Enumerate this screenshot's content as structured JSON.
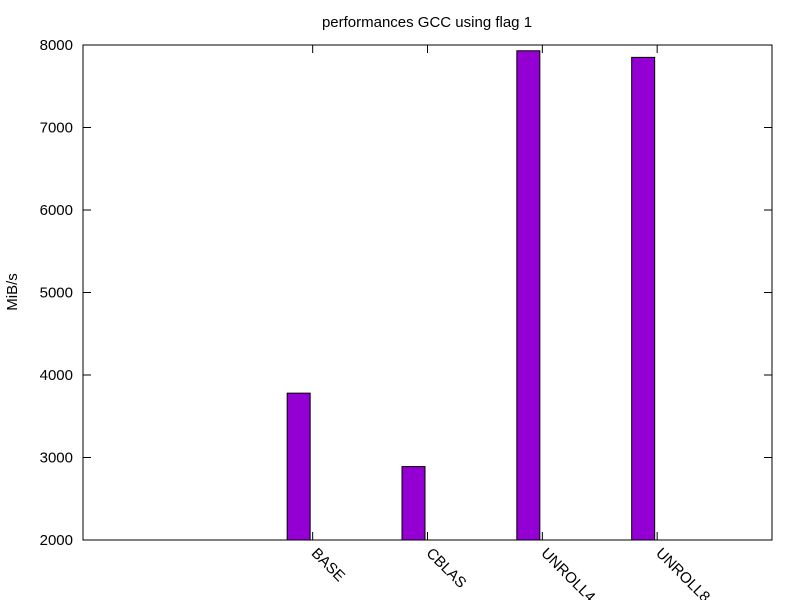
{
  "chart_data": {
    "type": "bar",
    "title": "performances GCC using flag 1",
    "xlabel": "",
    "ylabel": "MiB/s",
    "categories": [
      "BASE",
      "CBLAS",
      "UNROLL4",
      "UNROLL8"
    ],
    "values": [
      3780,
      2890,
      7930,
      7850
    ],
    "ylim": [
      2000,
      8000
    ],
    "yticks": [
      2000,
      3000,
      4000,
      5000,
      6000,
      7000,
      8000
    ],
    "bar_color": "#9400d3",
    "grid": false,
    "legend": "none"
  }
}
